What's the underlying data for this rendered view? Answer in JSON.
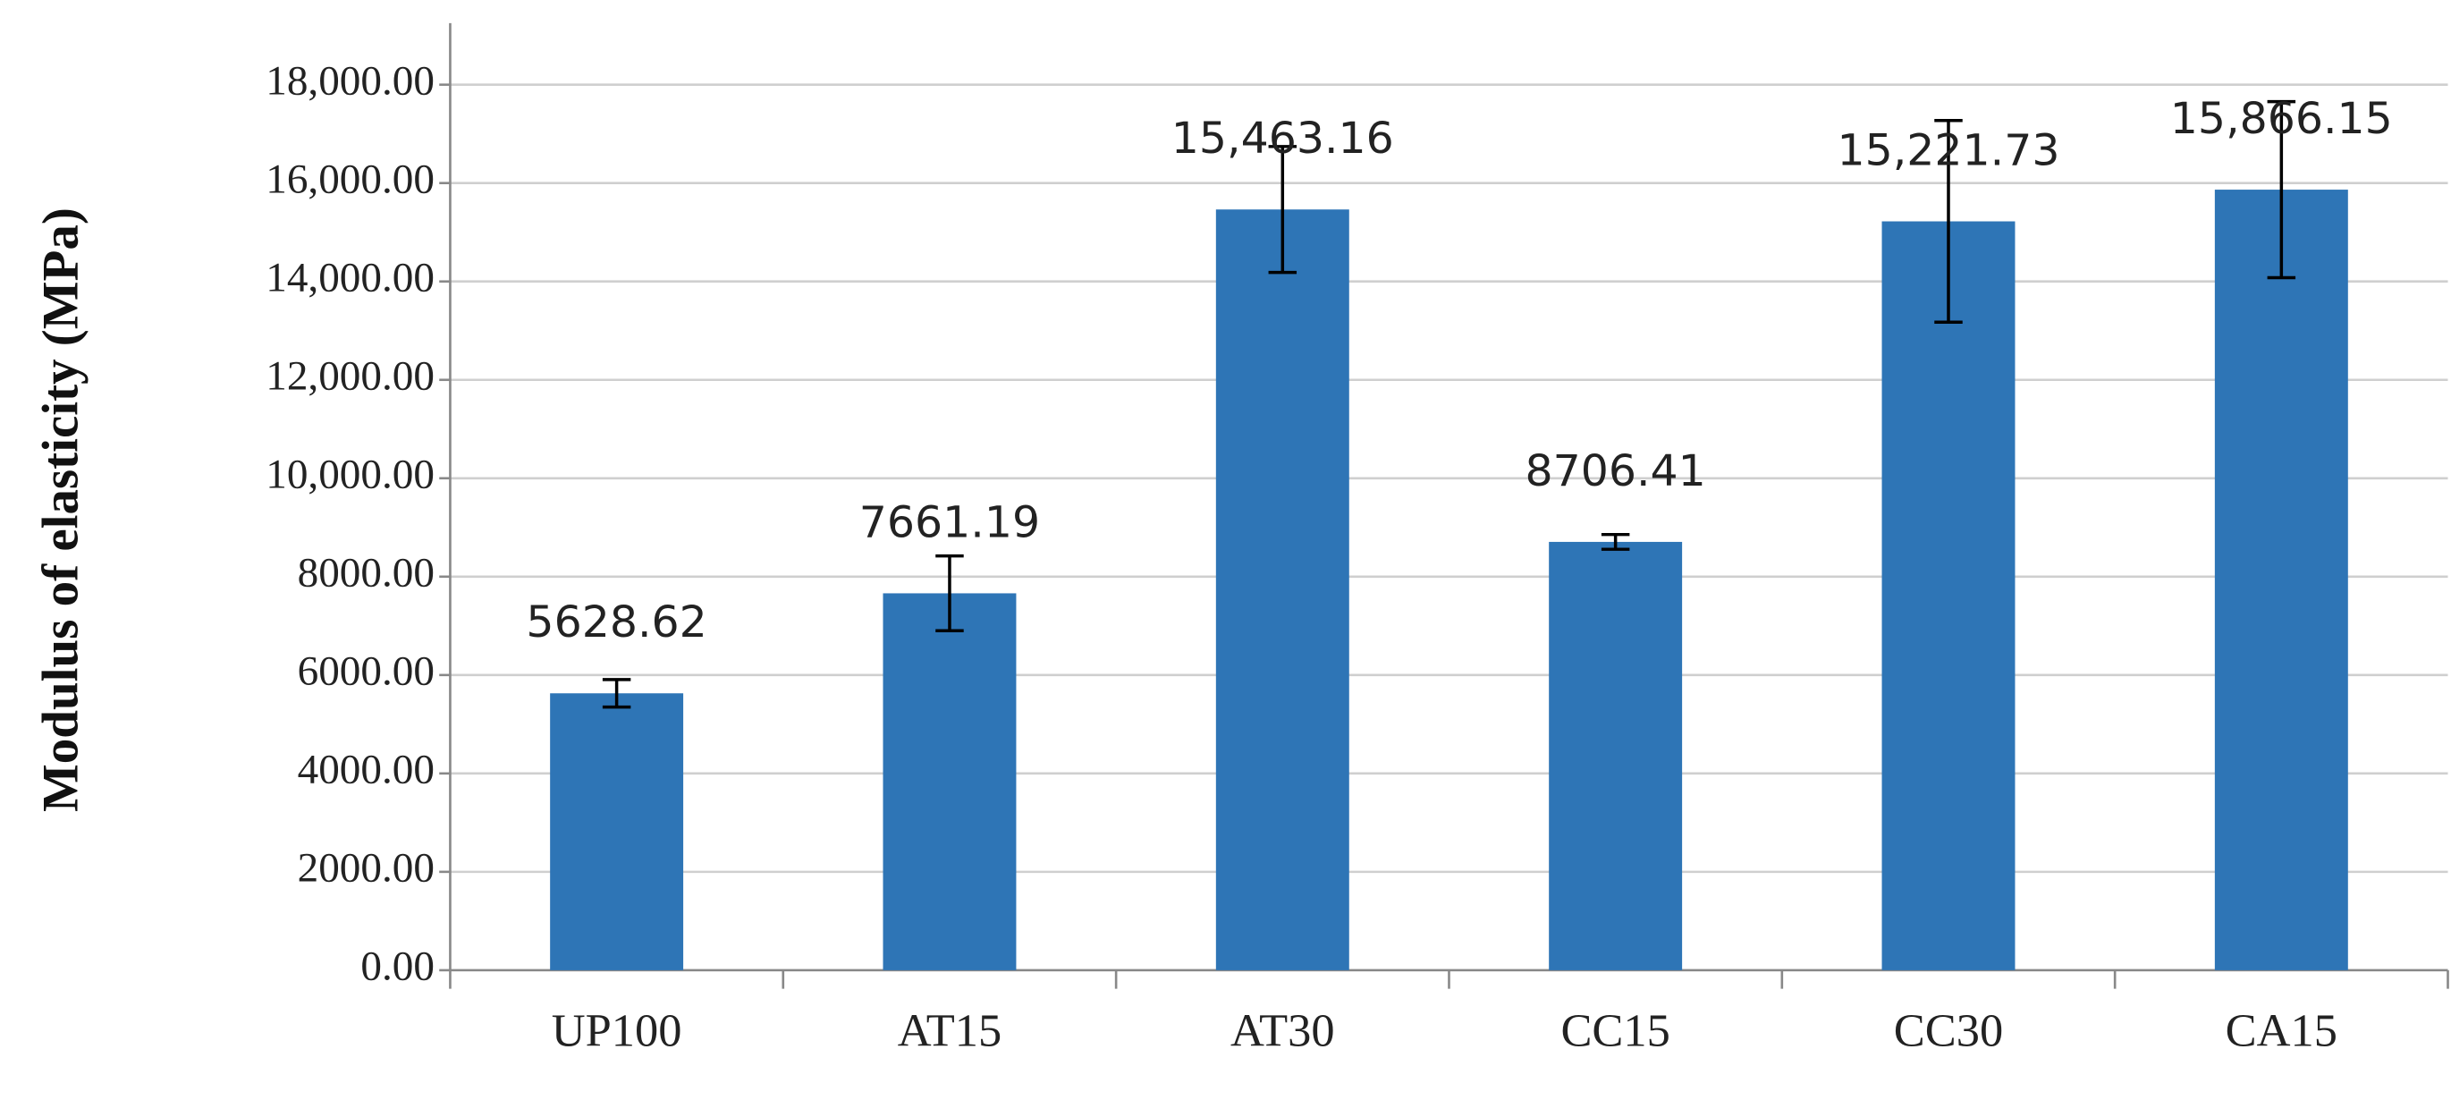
{
  "chart_data": {
    "type": "bar",
    "y_label": "Modulus of elasticity (MPa)",
    "categories": [
      "UP100",
      "AT15",
      "AT30",
      "CC15",
      "CC30",
      "CA15"
    ],
    "values": [
      5628.62,
      7661.19,
      15463.16,
      8706.41,
      15221.73,
      15866.15
    ],
    "value_labels": [
      "5628.62",
      "7661.19",
      "15,463.16",
      "8706.41",
      "15,221.73",
      "15,866.15"
    ],
    "errors": [
      280,
      760,
      1280,
      150,
      2050,
      1790
    ],
    "color": "#2e75b6",
    "ylim": [
      0,
      19250
    ],
    "yticks": [
      {
        "value": 0,
        "label": "0.00"
      },
      {
        "value": 2000,
        "label": "2000.00"
      },
      {
        "value": 4000,
        "label": "4000.00"
      },
      {
        "value": 6000,
        "label": "6000.00"
      },
      {
        "value": 8000,
        "label": "8000.00"
      },
      {
        "value": 10000,
        "label": "10,000.00"
      },
      {
        "value": 12000,
        "label": "12,000.00"
      },
      {
        "value": 14000,
        "label": "14,000.00"
      },
      {
        "value": 16000,
        "label": "16,000.00"
      },
      {
        "value": 18000,
        "label": "18,000.00"
      }
    ],
    "grid": true
  }
}
